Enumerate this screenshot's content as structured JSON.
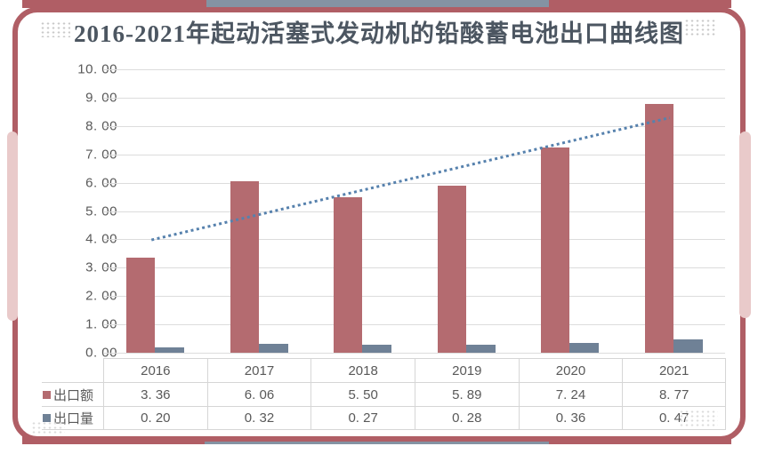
{
  "title": "2016-2021年起动活塞式发动机的铅酸蓄电池出口曲线图",
  "colors": {
    "frame": "#b05e65",
    "frame_accent": "#8493a3",
    "side_tab": "#e9caca",
    "bar_value": "#b46b70",
    "bar_volume": "#6f8196",
    "trend": "#5681ad",
    "grid": "#dcdcdc",
    "text": "#595959",
    "title_text": "#4c5661",
    "table_border": "#d6d6d6",
    "dots": "#c9c9c9",
    "dots_light": "#dcdcdc"
  },
  "chart_data": {
    "type": "bar",
    "title": "2016-2021年起动活塞式发动机的铅酸蓄电池出口曲线图",
    "categories": [
      "2016",
      "2017",
      "2018",
      "2019",
      "2020",
      "2021"
    ],
    "series": [
      {
        "name": "出口额",
        "values": [
          3.36,
          6.06,
          5.5,
          5.89,
          7.24,
          8.77
        ],
        "display": [
          "3. 36",
          "6. 06",
          "5. 50",
          "5. 89",
          "7. 24",
          "8. 77"
        ],
        "color_key": "bar_value"
      },
      {
        "name": "出口量",
        "values": [
          0.2,
          0.32,
          0.27,
          0.28,
          0.36,
          0.47
        ],
        "display": [
          "0. 20",
          "0. 32",
          "0. 27",
          "0. 28",
          "0. 36",
          "0. 47"
        ],
        "color_key": "bar_volume"
      }
    ],
    "trendline": {
      "for_series": "出口额",
      "style": "dotted",
      "start_value": 3.98,
      "end_value": 8.29
    },
    "ylim": [
      0,
      10
    ],
    "ytick_step": 1,
    "ytick_labels_top_to_bottom": [
      "10. 00",
      "9. 00",
      "8. 00",
      "7. 00",
      "6. 00",
      "5. 00",
      "4. 00",
      "3. 00",
      "2. 00",
      "1. 00",
      "0. 00"
    ],
    "grid": true,
    "legend_position": "table-left-column",
    "xlabel": "",
    "ylabel": ""
  }
}
